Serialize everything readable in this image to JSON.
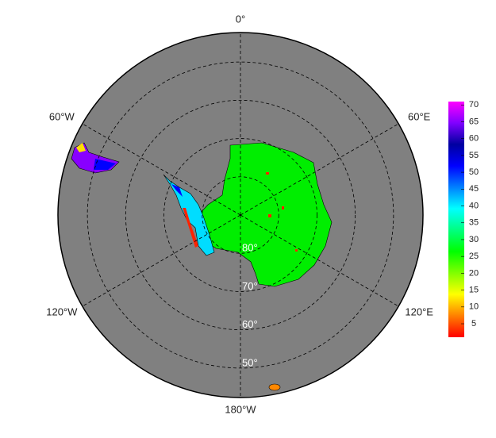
{
  "map": {
    "meridians": [
      {
        "value": 0,
        "label": "0°"
      },
      {
        "value": 60,
        "label": "60°E"
      },
      {
        "value": 120,
        "label": "120°E"
      },
      {
        "value": 180,
        "label": "180°W"
      },
      {
        "value": -120,
        "label": "120°W"
      },
      {
        "value": -60,
        "label": "60°W"
      }
    ],
    "parallels": [
      {
        "value": 80,
        "label": "80°"
      },
      {
        "value": 70,
        "label": "70°"
      },
      {
        "value": 60,
        "label": "60°"
      },
      {
        "value": 50,
        "label": "50°"
      }
    ],
    "lat_limit": 42.3,
    "colorbar": {
      "lim": [
        1,
        71
      ],
      "ticks": [
        5,
        10,
        15,
        20,
        25,
        30,
        35,
        40,
        45,
        50,
        55,
        60,
        65,
        70
      ],
      "colors": [
        "#ff0000",
        "#ff8000",
        "#ffff00",
        "#80ff00",
        "#00ff00",
        "#00ff80",
        "#00ffff",
        "#0080ff",
        "#0000ff",
        "#0000a0",
        "#8000ff",
        "#ff00ff"
      ]
    }
  }
}
